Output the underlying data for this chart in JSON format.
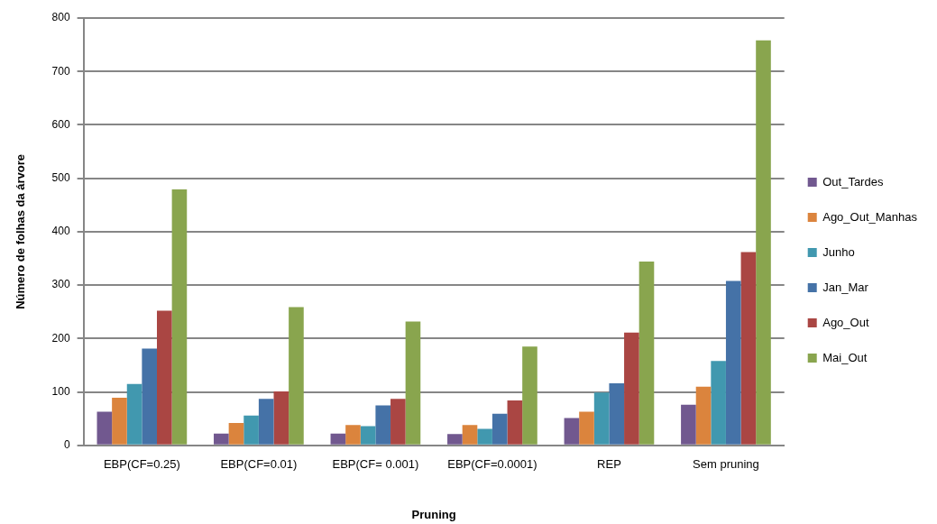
{
  "chart_data": {
    "type": "bar",
    "xlabel": "Pruning",
    "ylabel": "Número de folhas da árvore",
    "categories": [
      "EBP(CF=0.25)",
      "EBP(CF=0.01)",
      "EBP(CF= 0.001)",
      "EBP(CF=0.0001)",
      "REP",
      "Sem pruning"
    ],
    "series": [
      {
        "name": "Out_Tardes",
        "color": "#71588f",
        "values": [
          63,
          22,
          22,
          21,
          51,
          76
        ]
      },
      {
        "name": "Ago_Out_Manhas",
        "color": "#db843d",
        "values": [
          89,
          42,
          38,
          38,
          63,
          110
        ]
      },
      {
        "name": "Junho",
        "color": "#4198af",
        "values": [
          115,
          56,
          36,
          31,
          99,
          158
        ]
      },
      {
        "name": "Jan_Mar",
        "color": "#4572a7",
        "values": [
          181,
          87,
          75,
          59,
          116,
          308
        ]
      },
      {
        "name": "Ago_Out",
        "color": "#aa4643",
        "values": [
          252,
          101,
          87,
          84,
          211,
          362
        ]
      },
      {
        "name": "Mai_Out",
        "color": "#89a54e",
        "values": [
          479,
          259,
          232,
          185,
          344,
          758
        ]
      }
    ],
    "ylim": [
      0,
      800
    ],
    "yticks": [
      0,
      100,
      200,
      300,
      400,
      500,
      600,
      700,
      800
    ],
    "grid": "y",
    "legend": "right"
  }
}
